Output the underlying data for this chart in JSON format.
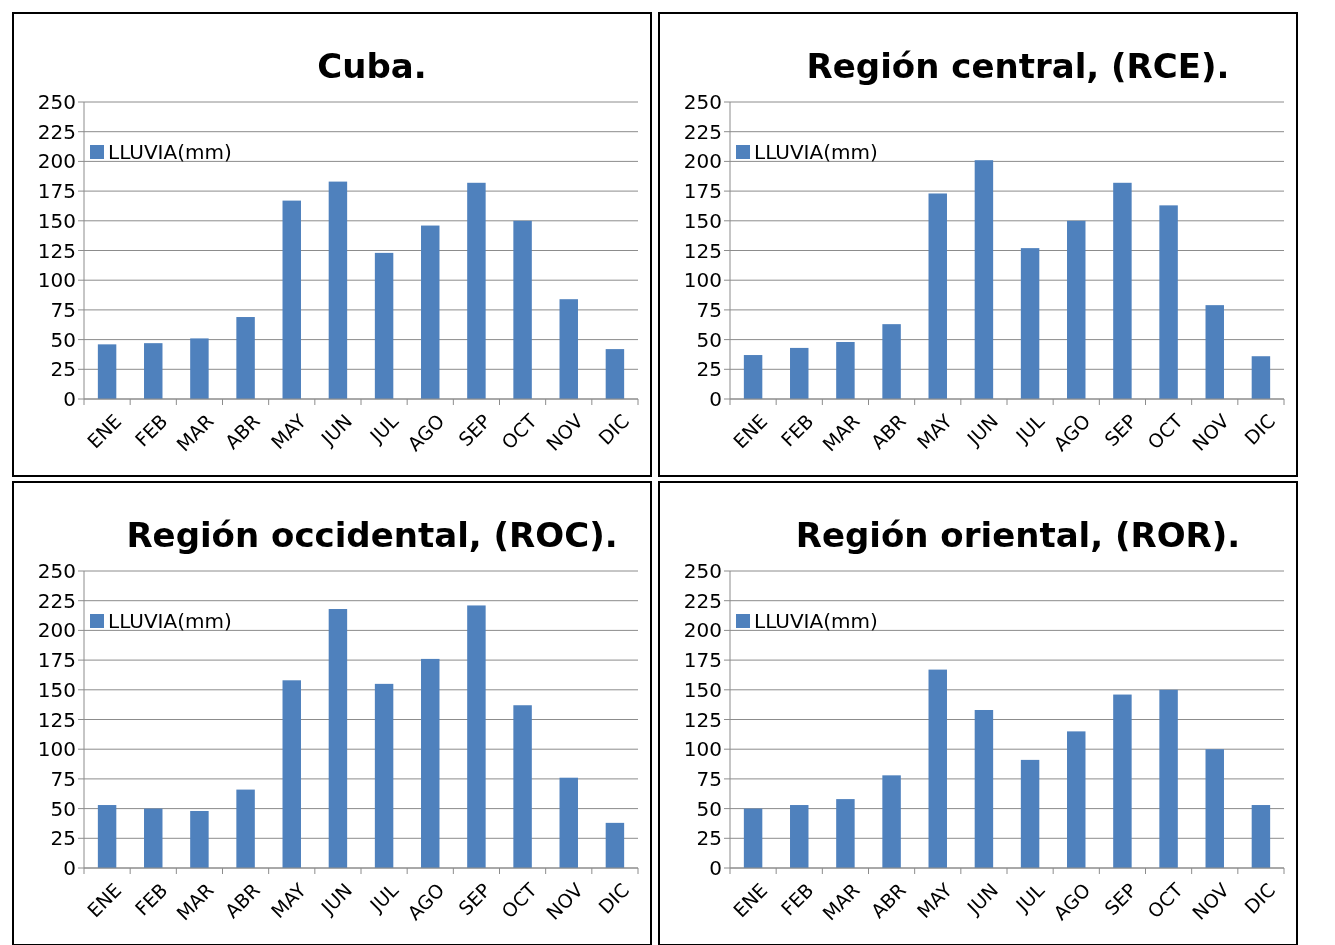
{
  "chart_data": [
    {
      "type": "bar",
      "title": "Cuba.",
      "categories": [
        "ENE",
        "FEB",
        "MAR",
        "ABR",
        "MAY",
        "JUN",
        "JUL",
        "AGO",
        "SEP",
        "OCT",
        "NOV",
        "DIC"
      ],
      "series": [
        {
          "name": "LLUVIA(mm)",
          "color": "#4f81bd",
          "values": [
            46,
            47,
            51,
            69,
            167,
            183,
            123,
            146,
            182,
            150,
            84,
            42
          ]
        }
      ],
      "ylim": [
        0,
        250
      ],
      "yticks": [
        0,
        25,
        50,
        75,
        100,
        125,
        150,
        175,
        200,
        225,
        250
      ],
      "grid": "y",
      "legend": "top left"
    },
    {
      "type": "bar",
      "title": "Región central, (RCE).",
      "categories": [
        "ENE",
        "FEB",
        "MAR",
        "ABR",
        "MAY",
        "JUN",
        "JUL",
        "AGO",
        "SEP",
        "OCT",
        "NOV",
        "DIC"
      ],
      "series": [
        {
          "name": "LLUVIA(mm)",
          "color": "#4f81bd",
          "values": [
            37,
            43,
            48,
            63,
            173,
            201,
            127,
            150,
            182,
            163,
            79,
            36
          ]
        }
      ],
      "ylim": [
        0,
        250
      ],
      "yticks": [
        0,
        25,
        50,
        75,
        100,
        125,
        150,
        175,
        200,
        225,
        250
      ],
      "grid": "y",
      "legend": "top left"
    },
    {
      "type": "bar",
      "title": "Región occidental, (ROC).",
      "categories": [
        "ENE",
        "FEB",
        "MAR",
        "ABR",
        "MAY",
        "JUN",
        "JUL",
        "AGO",
        "SEP",
        "OCT",
        "NOV",
        "DIC"
      ],
      "series": [
        {
          "name": "LLUVIA(mm)",
          "color": "#4f81bd",
          "values": [
            53,
            50,
            48,
            66,
            158,
            218,
            155,
            176,
            221,
            137,
            76,
            38
          ]
        }
      ],
      "ylim": [
        0,
        250
      ],
      "yticks": [
        0,
        25,
        50,
        75,
        100,
        125,
        150,
        175,
        200,
        225,
        250
      ],
      "grid": "y",
      "legend": "top left"
    },
    {
      "type": "bar",
      "title": "Región oriental, (ROR).",
      "categories": [
        "ENE",
        "FEB",
        "MAR",
        "ABR",
        "MAY",
        "JUN",
        "JUL",
        "AGO",
        "SEP",
        "OCT",
        "NOV",
        "DIC"
      ],
      "series": [
        {
          "name": "LLUVIA(mm)",
          "color": "#4f81bd",
          "values": [
            50,
            53,
            58,
            78,
            167,
            133,
            91,
            115,
            146,
            150,
            100,
            53
          ]
        }
      ],
      "ylim": [
        0,
        250
      ],
      "yticks": [
        0,
        25,
        50,
        75,
        100,
        125,
        150,
        175,
        200,
        225,
        250
      ],
      "grid": "y",
      "legend": "top left"
    }
  ]
}
